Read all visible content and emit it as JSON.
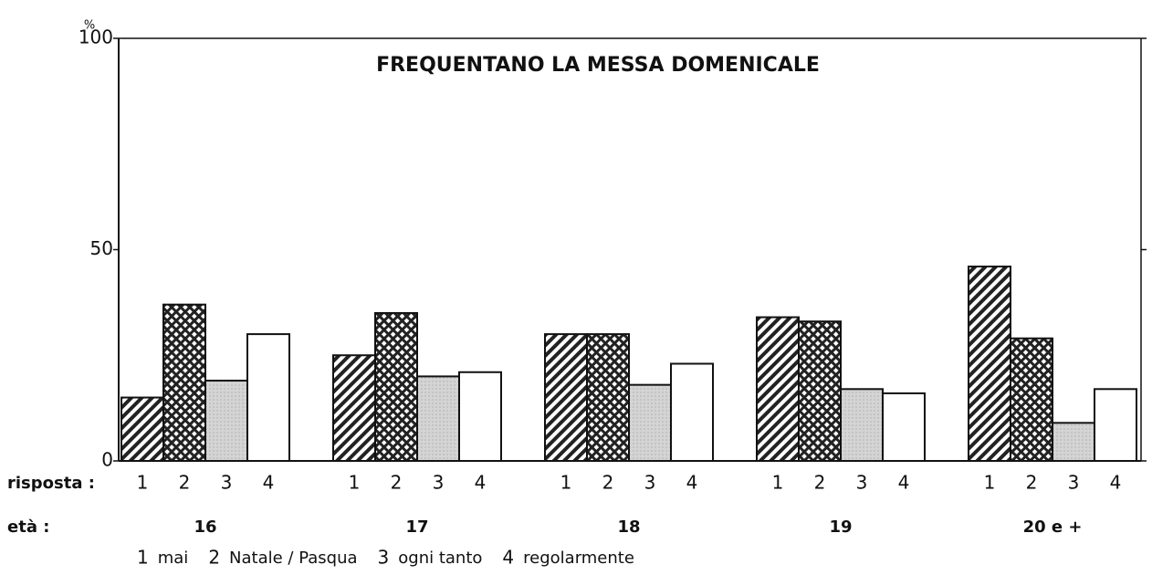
{
  "chart_data": {
    "type": "bar",
    "title": "FREQUENTANO LA MESSA DOMENICALE",
    "y_unit": "%",
    "code_row_label": "risposta :",
    "category_row_label": "età :",
    "categories": [
      "16",
      "17",
      "18",
      "19",
      "20 e +"
    ],
    "series": [
      {
        "code": "1",
        "name": "mai",
        "pattern": "diagonal",
        "color": "#222222",
        "values": [
          15,
          25,
          30,
          34,
          46
        ]
      },
      {
        "code": "2",
        "name": "Natale / Pasqua",
        "pattern": "crosshatch",
        "color": "#222222",
        "values": [
          37,
          35,
          30,
          33,
          29
        ]
      },
      {
        "code": "3",
        "name": "ogni tanto",
        "pattern": "dots",
        "color": "#d4d4d4",
        "values": [
          19,
          20,
          18,
          17,
          9
        ]
      },
      {
        "code": "4",
        "name": "regolarmente",
        "pattern": "none",
        "color": "#ffffff",
        "values": [
          30,
          21,
          23,
          16,
          17
        ]
      }
    ],
    "ylim": [
      0,
      100
    ],
    "yticks": [
      0,
      50,
      100
    ]
  }
}
